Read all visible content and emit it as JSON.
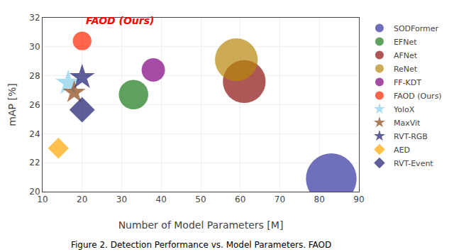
{
  "chart_data": {
    "type": "scatter",
    "xlabel": "Number of Model Parameters [M]",
    "ylabel": "mAP [%]",
    "xlim": [
      10,
      90
    ],
    "ylim": [
      20,
      32
    ],
    "xticks": [
      10,
      20,
      30,
      40,
      50,
      60,
      70,
      80,
      90
    ],
    "yticks": [
      20,
      22,
      24,
      26,
      28,
      30,
      32
    ],
    "grid": true,
    "legend": "right",
    "caption": "Figure 2. Detection Performance vs. Model Parameters. FAOD",
    "annotations": [
      {
        "text": "FAOD (Ours)",
        "x": 20.5,
        "y": 31.3,
        "color": "red"
      }
    ],
    "series": [
      {
        "name": "SODFormer",
        "color": "#3232a0",
        "marker": "circle",
        "x": [
          83
        ],
        "values": [
          20.9
        ],
        "sizes": [
          2800
        ]
      },
      {
        "name": "EFNet",
        "color": "#1a7a1a",
        "marker": "circle",
        "x": [
          33
        ],
        "values": [
          26.7
        ],
        "sizes": [
          950
        ]
      },
      {
        "name": "AFNet",
        "color": "#8B1010",
        "marker": "circle",
        "x": [
          61
        ],
        "values": [
          27.6
        ],
        "sizes": [
          2000
        ]
      },
      {
        "name": "ReNet",
        "color": "#b8860b",
        "marker": "circle",
        "x": [
          59
        ],
        "values": [
          29.1
        ],
        "sizes": [
          2000
        ]
      },
      {
        "name": "FF-KDT",
        "color": "#800080",
        "marker": "circle",
        "x": [
          38
        ],
        "values": [
          28.4
        ],
        "sizes": [
          600
        ]
      },
      {
        "name": "FAOD (Ours)",
        "color": "#ff2200",
        "marker": "circle",
        "x": [
          20
        ],
        "values": [
          30.4
        ],
        "sizes": [
          380
        ]
      },
      {
        "name": "YoloX",
        "color": "#87CEEB",
        "marker": "star",
        "x": [
          16.5
        ],
        "values": [
          27.5
        ],
        "sizes": [
          400
        ]
      },
      {
        "name": "MaxVit",
        "color": "#8B4513",
        "marker": "star",
        "x": [
          18
        ],
        "values": [
          26.85
        ],
        "sizes": [
          320
        ]
      },
      {
        "name": "RVT-RGB",
        "color": "#191970",
        "marker": "star",
        "x": [
          20
        ],
        "values": [
          27.9
        ],
        "sizes": [
          400
        ]
      },
      {
        "name": "AED",
        "color": "#FFA500",
        "marker": "diamond",
        "x": [
          14
        ],
        "values": [
          23.0
        ],
        "sizes": [
          280
        ]
      },
      {
        "name": "RVT-Event",
        "color": "#1a1a6e",
        "marker": "diamond",
        "x": [
          20
        ],
        "values": [
          25.65
        ],
        "sizes": [
          420
        ]
      }
    ]
  }
}
